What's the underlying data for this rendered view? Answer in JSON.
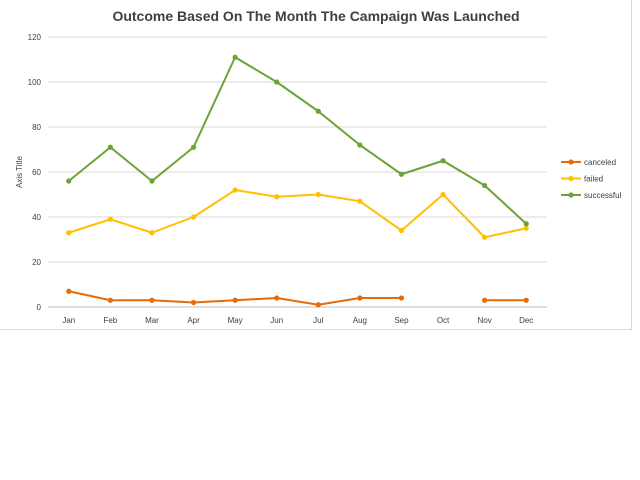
{
  "chart_data": {
    "type": "line",
    "title": "Outcome Based On The Month The Campaign Was Launched",
    "xlabel": "",
    "ylabel": "Axis Title",
    "categories": [
      "Jan",
      "Feb",
      "Mar",
      "Apr",
      "May",
      "Jun",
      "Jul",
      "Aug",
      "Sep",
      "Oct",
      "Nov",
      "Dec"
    ],
    "ylim": [
      0,
      120
    ],
    "yticks": [
      "0",
      "20",
      "40",
      "60",
      "80",
      "100",
      "120"
    ],
    "grid": true,
    "legend_position": "right",
    "series": [
      {
        "name": "canceled",
        "color": "#E46C0A",
        "values": [
          7,
          3,
          3,
          2,
          3,
          4,
          1,
          4,
          4,
          null,
          3,
          3
        ]
      },
      {
        "name": "failed",
        "color": "#FFC000",
        "values": [
          33,
          39,
          33,
          40,
          52,
          49,
          50,
          47,
          34,
          50,
          31,
          35
        ]
      },
      {
        "name": "successful",
        "color": "#6AA437",
        "values": [
          56,
          71,
          56,
          71,
          111,
          100,
          87,
          72,
          59,
          65,
          54,
          37
        ]
      }
    ]
  }
}
